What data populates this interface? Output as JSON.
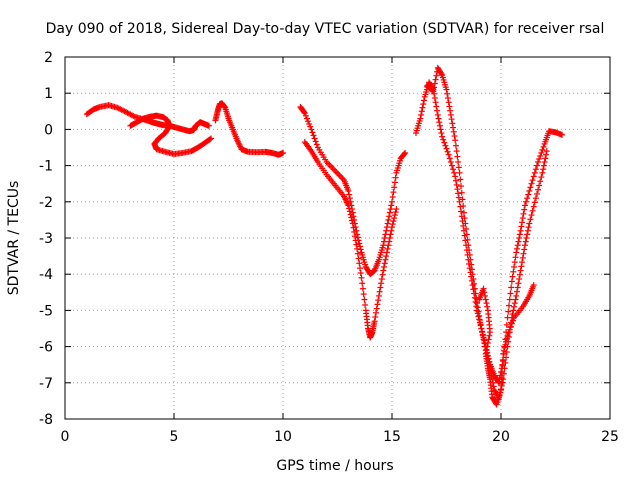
{
  "chart_data": {
    "type": "scatter",
    "title": "Day 090 of 2018, Sidereal Day-to-day VTEC variation (SDTVAR) for receiver rsal",
    "xlabel": "GPS time / hours",
    "ylabel": "SDTVAR / TECUs",
    "xlim": [
      0,
      25
    ],
    "ylim": [
      -8,
      2
    ],
    "xticks": [
      "0",
      "5",
      "10",
      "15",
      "20",
      "25"
    ],
    "yticks": [
      "2",
      "1",
      "0",
      "-1",
      "-2",
      "-3",
      "-4",
      "-5",
      "-6",
      "-7",
      "-8"
    ],
    "grid": true,
    "marker": "plus",
    "color": "#ff0000",
    "series": [
      {
        "points": [
          [
            1.0,
            0.42
          ],
          [
            1.3,
            0.55
          ],
          [
            1.6,
            0.62
          ],
          [
            2.0,
            0.67
          ],
          [
            2.4,
            0.6
          ],
          [
            2.8,
            0.48
          ],
          [
            3.2,
            0.35
          ],
          [
            3.6,
            0.28
          ],
          [
            3.9,
            0.22
          ],
          [
            4.1,
            0.18
          ],
          [
            4.3,
            0.15
          ],
          [
            4.5,
            0.12
          ],
          [
            4.8,
            0.1
          ],
          [
            5.1,
            0.05
          ],
          [
            5.4,
            0.0
          ],
          [
            5.7,
            -0.05
          ],
          [
            5.9,
            -0.02
          ],
          [
            6.0,
            0.1
          ],
          [
            6.2,
            0.2
          ],
          [
            6.4,
            0.15
          ],
          [
            6.6,
            0.1
          ]
        ]
      },
      {
        "points": [
          [
            3.0,
            0.1
          ],
          [
            3.3,
            0.2
          ],
          [
            3.6,
            0.3
          ],
          [
            3.9,
            0.35
          ],
          [
            4.2,
            0.38
          ],
          [
            4.5,
            0.34
          ],
          [
            4.7,
            0.25
          ],
          [
            4.8,
            0.1
          ],
          [
            4.6,
            -0.1
          ],
          [
            4.3,
            -0.25
          ],
          [
            4.1,
            -0.4
          ],
          [
            4.2,
            -0.55
          ],
          [
            4.6,
            -0.62
          ],
          [
            5.0,
            -0.68
          ],
          [
            5.4,
            -0.65
          ],
          [
            5.8,
            -0.6
          ],
          [
            6.1,
            -0.5
          ],
          [
            6.4,
            -0.38
          ],
          [
            6.7,
            -0.25
          ]
        ]
      },
      {
        "points": [
          [
            6.9,
            0.25
          ],
          [
            7.0,
            0.5
          ],
          [
            7.1,
            0.7
          ],
          [
            7.2,
            0.72
          ],
          [
            7.35,
            0.6
          ],
          [
            7.5,
            0.3
          ],
          [
            7.7,
            0.0
          ],
          [
            7.9,
            -0.3
          ],
          [
            8.1,
            -0.55
          ],
          [
            8.4,
            -0.62
          ],
          [
            8.8,
            -0.63
          ],
          [
            9.2,
            -0.62
          ],
          [
            9.5,
            -0.65
          ],
          [
            9.8,
            -0.7
          ],
          [
            10.0,
            -0.65
          ]
        ]
      },
      {
        "points": [
          [
            10.8,
            0.62
          ],
          [
            11.0,
            0.45
          ],
          [
            11.3,
            0.0
          ],
          [
            11.6,
            -0.5
          ],
          [
            12.0,
            -0.9
          ],
          [
            12.4,
            -1.15
          ],
          [
            12.8,
            -1.4
          ],
          [
            13.0,
            -1.7
          ],
          [
            13.2,
            -2.3
          ],
          [
            13.4,
            -2.9
          ],
          [
            13.6,
            -3.4
          ],
          [
            13.8,
            -3.8
          ],
          [
            14.0,
            -4.0
          ],
          [
            14.2,
            -3.9
          ],
          [
            14.4,
            -3.6
          ],
          [
            14.6,
            -3.2
          ],
          [
            14.8,
            -2.6
          ],
          [
            15.0,
            -2.0
          ],
          [
            15.2,
            -1.2
          ],
          [
            15.4,
            -0.8
          ],
          [
            15.6,
            -0.65
          ]
        ]
      },
      {
        "points": [
          [
            11.0,
            -0.35
          ],
          [
            11.3,
            -0.6
          ],
          [
            11.6,
            -0.9
          ],
          [
            12.0,
            -1.25
          ],
          [
            12.4,
            -1.55
          ],
          [
            12.8,
            -1.85
          ],
          [
            13.0,
            -2.1
          ],
          [
            13.2,
            -2.6
          ],
          [
            13.4,
            -3.3
          ],
          [
            13.6,
            -4.1
          ],
          [
            13.8,
            -5.0
          ],
          [
            13.9,
            -5.5
          ],
          [
            14.0,
            -5.75
          ],
          [
            14.1,
            -5.6
          ],
          [
            14.2,
            -5.3
          ],
          [
            14.4,
            -4.6
          ],
          [
            14.6,
            -3.9
          ],
          [
            14.8,
            -3.3
          ],
          [
            15.0,
            -2.7
          ],
          [
            15.2,
            -2.2
          ]
        ]
      },
      {
        "points": [
          [
            16.1,
            -0.1
          ],
          [
            16.3,
            0.3
          ],
          [
            16.5,
            0.9
          ],
          [
            16.7,
            1.3
          ],
          [
            16.9,
            1.1
          ],
          [
            17.1,
            0.4
          ],
          [
            17.3,
            -0.2
          ],
          [
            17.6,
            -0.7
          ],
          [
            17.9,
            -1.3
          ],
          [
            18.1,
            -2.0
          ],
          [
            18.3,
            -2.8
          ],
          [
            18.5,
            -3.6
          ],
          [
            18.7,
            -4.3
          ],
          [
            18.9,
            -5.0
          ],
          [
            19.1,
            -5.5
          ],
          [
            19.3,
            -6.0
          ],
          [
            19.5,
            -6.5
          ],
          [
            19.7,
            -6.8
          ],
          [
            19.9,
            -7.0
          ],
          [
            20.1,
            -6.4
          ],
          [
            20.3,
            -5.2
          ],
          [
            20.5,
            -4.2
          ],
          [
            20.7,
            -3.4
          ],
          [
            20.9,
            -2.8
          ],
          [
            21.1,
            -2.1
          ],
          [
            21.4,
            -1.5
          ],
          [
            21.7,
            -0.9
          ],
          [
            22.0,
            -0.4
          ],
          [
            22.2,
            -0.05
          ],
          [
            22.5,
            -0.08
          ],
          [
            22.8,
            -0.15
          ]
        ]
      },
      {
        "points": [
          [
            16.6,
            1.2
          ],
          [
            16.9,
            1.05
          ],
          [
            17.1,
            1.7
          ],
          [
            17.3,
            1.5
          ],
          [
            17.5,
            1.1
          ],
          [
            17.7,
            0.4
          ],
          [
            17.9,
            -0.3
          ],
          [
            18.1,
            -1.2
          ],
          [
            18.3,
            -2.3
          ],
          [
            18.5,
            -3.2
          ],
          [
            18.7,
            -4.0
          ],
          [
            18.9,
            -4.8
          ],
          [
            19.1,
            -5.5
          ],
          [
            19.3,
            -6.1
          ],
          [
            19.5,
            -6.6
          ],
          [
            19.7,
            -7.2
          ],
          [
            19.9,
            -7.45
          ],
          [
            20.1,
            -6.9
          ],
          [
            20.3,
            -6.0
          ],
          [
            20.5,
            -5.2
          ],
          [
            20.7,
            -4.6
          ],
          [
            20.9,
            -3.9
          ],
          [
            21.1,
            -3.2
          ],
          [
            21.3,
            -2.6
          ],
          [
            21.6,
            -1.9
          ],
          [
            21.9,
            -1.2
          ],
          [
            22.1,
            -0.6
          ]
        ]
      },
      {
        "points": [
          [
            19.0,
            -4.7
          ],
          [
            19.2,
            -4.4
          ],
          [
            19.4,
            -5.0
          ],
          [
            19.5,
            -5.6
          ],
          [
            19.3,
            -6.2
          ],
          [
            19.4,
            -6.6
          ],
          [
            19.5,
            -6.9
          ],
          [
            19.6,
            -7.4
          ],
          [
            19.8,
            -7.6
          ],
          [
            20.0,
            -7.2
          ],
          [
            20.1,
            -6.2
          ],
          [
            20.3,
            -5.7
          ],
          [
            20.6,
            -5.2
          ],
          [
            21.0,
            -4.9
          ],
          [
            21.3,
            -4.6
          ],
          [
            21.5,
            -4.3
          ]
        ]
      }
    ]
  }
}
